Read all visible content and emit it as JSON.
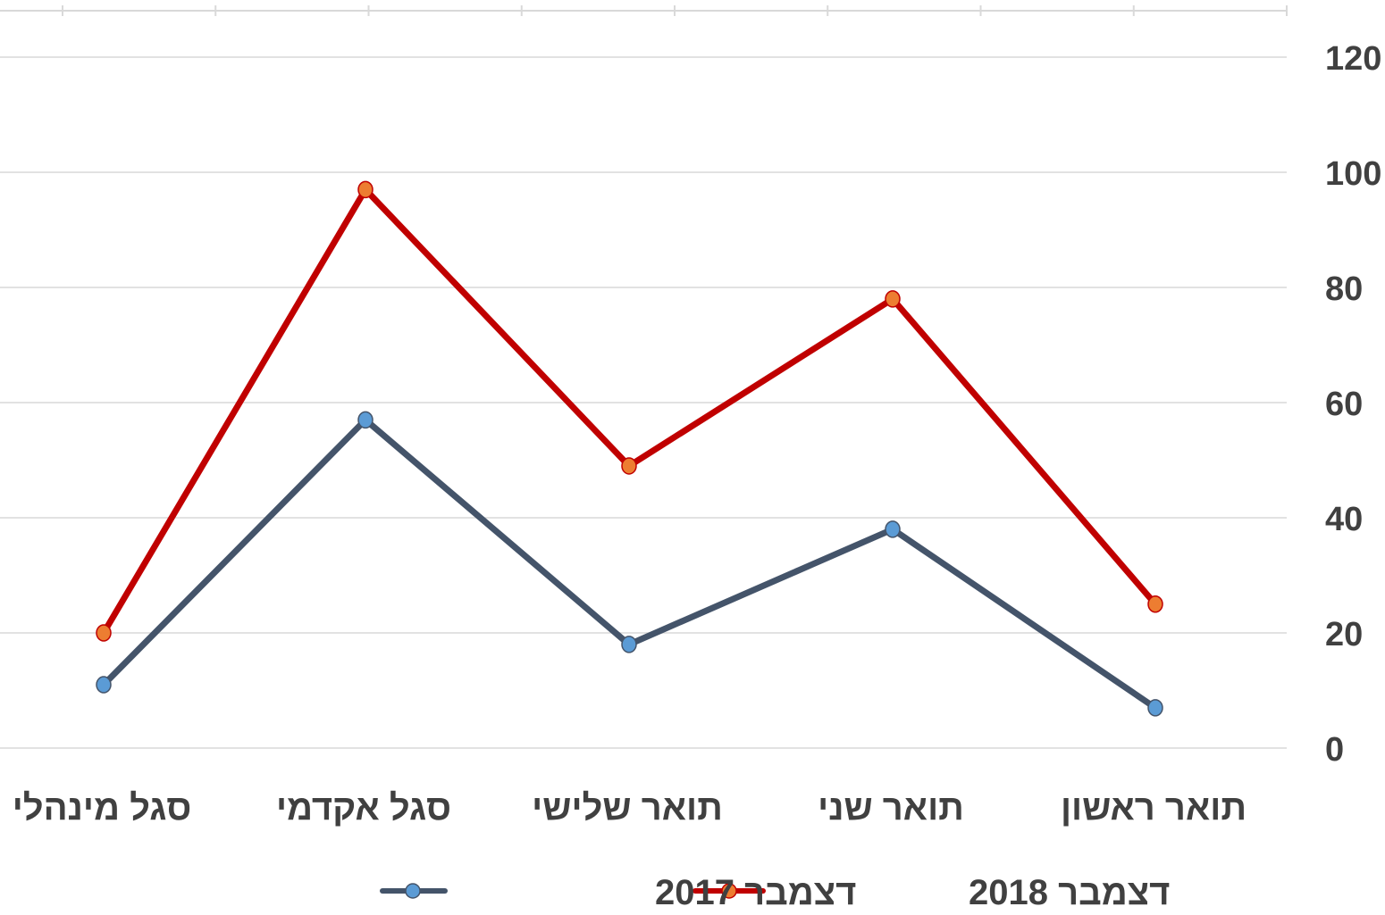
{
  "chart_data": {
    "type": "line",
    "title": "",
    "xlabel": "",
    "ylabel": "",
    "categories": [
      "תואר ראשון",
      "תואר שני",
      "תואר שלישי",
      "סגל אקדמי",
      "סגל מינהלי"
    ],
    "x_axis_direction": "right-to-left",
    "y_axis_position": "right",
    "ylim": [
      0,
      120
    ],
    "yticks": [
      "0",
      "20",
      "40",
      "60",
      "80",
      "100",
      "120"
    ],
    "grid": true,
    "legend_position": "bottom",
    "series": [
      {
        "name": "דצמבר 2018",
        "color": "#c00000",
        "marker_color": "#ed7d31",
        "values": [
          25,
          78,
          49,
          97,
          20
        ]
      },
      {
        "name": "דצמבר 2017",
        "color": "#44546a",
        "marker_color": "#5b9bd5",
        "values": [
          7,
          38,
          18,
          57,
          11
        ]
      }
    ]
  }
}
